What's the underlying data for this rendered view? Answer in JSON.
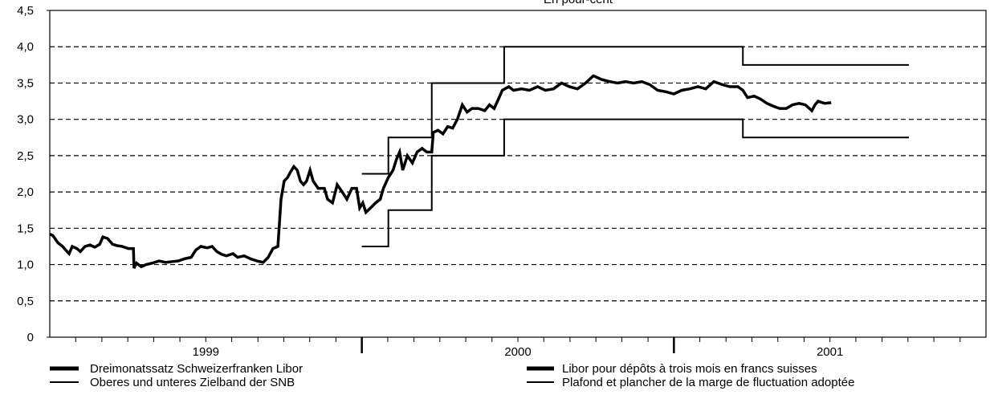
{
  "chart_data": {
    "type": "line",
    "title": "En pour-cent",
    "xlim": [
      1999,
      2002
    ],
    "xticks": [
      {
        "value": 1999.5,
        "label": "1999"
      },
      {
        "value": 2000.5,
        "label": "2000"
      },
      {
        "value": 2001.5,
        "label": "2001"
      }
    ],
    "xmajorticks": [
      2000,
      2001
    ],
    "xminorticks": [
      1999.083,
      1999.167,
      1999.25,
      1999.333,
      1999.417,
      1999.5,
      1999.583,
      1999.667,
      1999.75,
      1999.833,
      1999.917,
      2000.083,
      2000.167,
      2000.25,
      2000.333,
      2000.417,
      2000.5,
      2000.583,
      2000.667,
      2000.75,
      2000.833,
      2000.917,
      2001.083,
      2001.167,
      2001.25,
      2001.333,
      2001.417,
      2001.5,
      2001.583,
      2001.667,
      2001.75,
      2001.833,
      2001.917
    ],
    "ylim": [
      0,
      4.5
    ],
    "yticks": [
      0,
      {
        "value": 0.5,
        "label": "0,5"
      },
      {
        "value": 1,
        "label": "1,0"
      },
      {
        "value": 1.5,
        "label": "1,5"
      },
      {
        "value": 2,
        "label": "2,0"
      },
      {
        "value": 2.5,
        "label": "2,5"
      },
      {
        "value": 3,
        "label": "3,0"
      },
      {
        "value": 3.5,
        "label": "3,5"
      },
      {
        "value": 4,
        "label": "4,0"
      },
      {
        "value": 4.5,
        "label": "4,5"
      }
    ],
    "grid": "dashed",
    "series": [
      {
        "name": "Dreimonatssatz Schweizerfranken Libor",
        "name_fr": "Libor pour dépôts à trois mois en francs suisses",
        "color": "#000000",
        "width": 3.5,
        "x": [
          1999.0,
          1999.01,
          1999.026,
          1999.041,
          1999.051,
          1999.062,
          1999.072,
          1999.087,
          1999.098,
          1999.113,
          1999.129,
          1999.144,
          1999.16,
          1999.17,
          1999.185,
          1999.201,
          1999.216,
          1999.232,
          1999.252,
          1999.268,
          1999.27,
          1999.278,
          1999.293,
          1999.309,
          1999.329,
          1999.35,
          1999.371,
          1999.391,
          1999.412,
          1999.432,
          1999.453,
          1999.468,
          1999.484,
          1999.504,
          1999.52,
          1999.535,
          1999.551,
          1999.566,
          1999.587,
          1999.602,
          1999.623,
          1999.643,
          1999.664,
          1999.684,
          1999.7,
          1999.715,
          1999.731,
          1999.741,
          1999.751,
          1999.762,
          1999.772,
          1999.782,
          1999.793,
          1999.803,
          1999.813,
          1999.823,
          1999.834,
          1999.844,
          1999.86,
          1999.88,
          1999.89,
          1999.906,
          1999.921,
          1999.937,
          1999.952,
          1999.968,
          1999.983,
          1999.993,
          2000.003,
          2000.013,
          2000.028,
          2000.044,
          2000.059,
          2000.069,
          2000.085,
          2000.1,
          2000.111,
          2000.121,
          2000.131,
          2000.146,
          2000.162,
          2000.177,
          2000.193,
          2000.208,
          2000.224,
          2000.229,
          2000.244,
          2000.26,
          2000.275,
          2000.291,
          2000.306,
          2000.322,
          2000.337,
          2000.353,
          2000.373,
          2000.394,
          2000.409,
          2000.424,
          2000.44,
          2000.45,
          2000.471,
          2000.486,
          2000.512,
          2000.537,
          2000.563,
          2000.588,
          2000.614,
          2000.64,
          2000.665,
          2000.691,
          2000.717,
          2000.742,
          2000.768,
          2000.794,
          2000.82,
          2000.845,
          2000.871,
          2000.897,
          2000.922,
          2000.948,
          2000.974,
          2001.0,
          2001.025,
          2001.051,
          2001.077,
          2001.102,
          2001.128,
          2001.154,
          2001.179,
          2001.205,
          2001.221,
          2001.236,
          2001.257,
          2001.277,
          2001.298,
          2001.319,
          2001.339,
          2001.36,
          2001.38,
          2001.401,
          2001.421,
          2001.442,
          2001.452,
          2001.462,
          2001.483,
          2001.504
        ],
        "values": [
          1.42,
          1.4,
          1.3,
          1.25,
          1.2,
          1.15,
          1.25,
          1.22,
          1.18,
          1.25,
          1.27,
          1.24,
          1.28,
          1.38,
          1.36,
          1.28,
          1.26,
          1.25,
          1.22,
          1.22,
          0.95,
          1.02,
          0.97,
          1.0,
          1.02,
          1.05,
          1.03,
          1.04,
          1.05,
          1.08,
          1.1,
          1.2,
          1.25,
          1.23,
          1.25,
          1.18,
          1.14,
          1.12,
          1.15,
          1.1,
          1.12,
          1.08,
          1.05,
          1.03,
          1.1,
          1.22,
          1.25,
          1.9,
          2.15,
          2.2,
          2.28,
          2.35,
          2.3,
          2.15,
          2.1,
          2.15,
          2.3,
          2.15,
          2.05,
          2.05,
          1.9,
          1.85,
          2.1,
          2.0,
          1.9,
          2.05,
          2.05,
          1.78,
          1.85,
          1.72,
          1.78,
          1.85,
          1.9,
          2.05,
          2.2,
          2.3,
          2.45,
          2.55,
          2.3,
          2.5,
          2.4,
          2.55,
          2.6,
          2.55,
          2.55,
          2.82,
          2.85,
          2.8,
          2.9,
          2.88,
          3.0,
          3.2,
          3.1,
          3.15,
          3.15,
          3.12,
          3.2,
          3.15,
          3.3,
          3.4,
          3.45,
          3.4,
          3.42,
          3.4,
          3.45,
          3.4,
          3.42,
          3.5,
          3.45,
          3.42,
          3.5,
          3.6,
          3.55,
          3.52,
          3.5,
          3.52,
          3.5,
          3.52,
          3.48,
          3.4,
          3.38,
          3.35,
          3.4,
          3.42,
          3.45,
          3.42,
          3.52,
          3.48,
          3.45,
          3.45,
          3.4,
          3.3,
          3.32,
          3.28,
          3.22,
          3.18,
          3.15,
          3.15,
          3.2,
          3.22,
          3.2,
          3.12,
          3.2,
          3.25,
          3.22,
          3.23
        ]
      },
      {
        "name": "Oberes und unteres Zielband der SNB",
        "name_fr": "Plafond et plancher de la marge de fluctuation adoptée",
        "color": "#000000",
        "width": 2,
        "x": [
          2000.0,
          2000.085,
          2000.085,
          2000.224,
          2000.224,
          2000.456,
          2000.456,
          2001.221,
          2001.221,
          2001.753
        ],
        "upper": [
          2.25,
          2.25,
          2.75,
          2.75,
          3.5,
          3.5,
          4.0,
          4.0,
          3.75,
          3.75
        ],
        "lower": [
          1.25,
          1.25,
          1.75,
          1.75,
          2.5,
          2.5,
          3.0,
          3.0,
          2.75,
          2.75
        ]
      }
    ]
  }
}
